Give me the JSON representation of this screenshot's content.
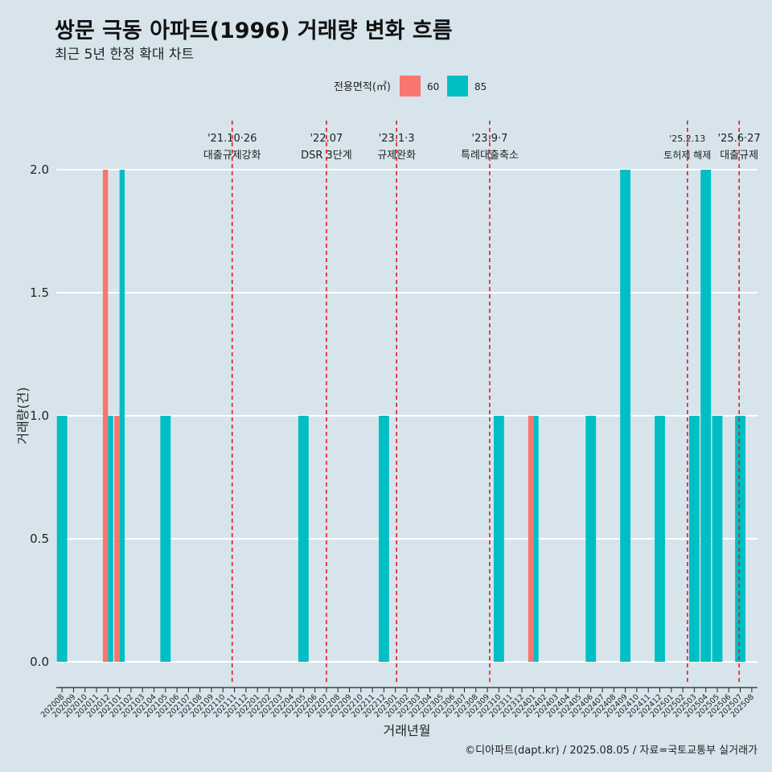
{
  "title": "쌍문 극동 아파트(1996) 거래량 변화 흐름",
  "subtitle": "최근 5년 한정 확대 차트",
  "caption": "©디아파트(dapt.kr) / 2025.08.05 / 자료=국토교통부 실거래가",
  "colors": {
    "s60": "#f8766d",
    "s85": "#00bfc4",
    "event": "#e41a1c",
    "grid": "#ffffff",
    "background": "#d7e4ec"
  },
  "chart_data": {
    "type": "bar",
    "xlabel": "거래년월",
    "ylabel": "거래량(건)",
    "ylim": [
      0,
      2
    ],
    "yticks": [
      0.0,
      0.5,
      1.0,
      1.5,
      2.0
    ],
    "ytick_labels": [
      "0.0",
      "0.5",
      "1.0",
      "1.5",
      "2.0"
    ],
    "legend": {
      "title": "전용면적(㎡)",
      "position": "top"
    },
    "categories": [
      "202008",
      "202009",
      "202010",
      "202011",
      "202012",
      "202101",
      "202102",
      "202103",
      "202104",
      "202105",
      "202106",
      "202107",
      "202108",
      "202109",
      "202110",
      "202111",
      "202112",
      "202201",
      "202202",
      "202203",
      "202204",
      "202205",
      "202206",
      "202207",
      "202208",
      "202209",
      "202210",
      "202211",
      "202212",
      "202301",
      "202302",
      "202303",
      "202304",
      "202305",
      "202306",
      "202307",
      "202308",
      "202309",
      "202310",
      "202311",
      "202312",
      "202401",
      "202402",
      "202403",
      "202404",
      "202405",
      "202406",
      "202407",
      "202408",
      "202409",
      "202410",
      "202411",
      "202412",
      "202501",
      "202502",
      "202503",
      "202504",
      "202505",
      "202506",
      "202507",
      "202508"
    ],
    "series": [
      {
        "name": "60",
        "points": [
          [
            "202012",
            2
          ],
          [
            "202101",
            1
          ],
          [
            "202401",
            1
          ]
        ]
      },
      {
        "name": "85",
        "points": [
          [
            "202008",
            1
          ],
          [
            "202012",
            1
          ],
          [
            "202101",
            2
          ],
          [
            "202105",
            1
          ],
          [
            "202205",
            1
          ],
          [
            "202212",
            1
          ],
          [
            "202310",
            1
          ],
          [
            "202401",
            1
          ],
          [
            "202406",
            1
          ],
          [
            "202409",
            2
          ],
          [
            "202412",
            1
          ],
          [
            "202503",
            1
          ],
          [
            "202504",
            2
          ],
          [
            "202505",
            1
          ],
          [
            "202507",
            1
          ]
        ]
      }
    ],
    "events": [
      {
        "x": "202110",
        "offset": 0.8,
        "date": "'21.10·26",
        "label": "대출규제강화"
      },
      {
        "x": "202207",
        "offset": 0.0,
        "date": "'22.07",
        "label": "DSR 3단계"
      },
      {
        "x": "202301",
        "offset": 0.1,
        "date": "'23.1·3",
        "label": "규제완화"
      },
      {
        "x": "202309",
        "offset": 0.2,
        "date": "'23.9·7",
        "label": "특례대출축소"
      },
      {
        "x": "202502",
        "offset": 0.4,
        "date": "'25.2.13",
        "label": "토허제 해제"
      },
      {
        "x": "202506",
        "offset": 0.9,
        "date": "'25.6·27",
        "label": "대출규제"
      }
    ]
  }
}
